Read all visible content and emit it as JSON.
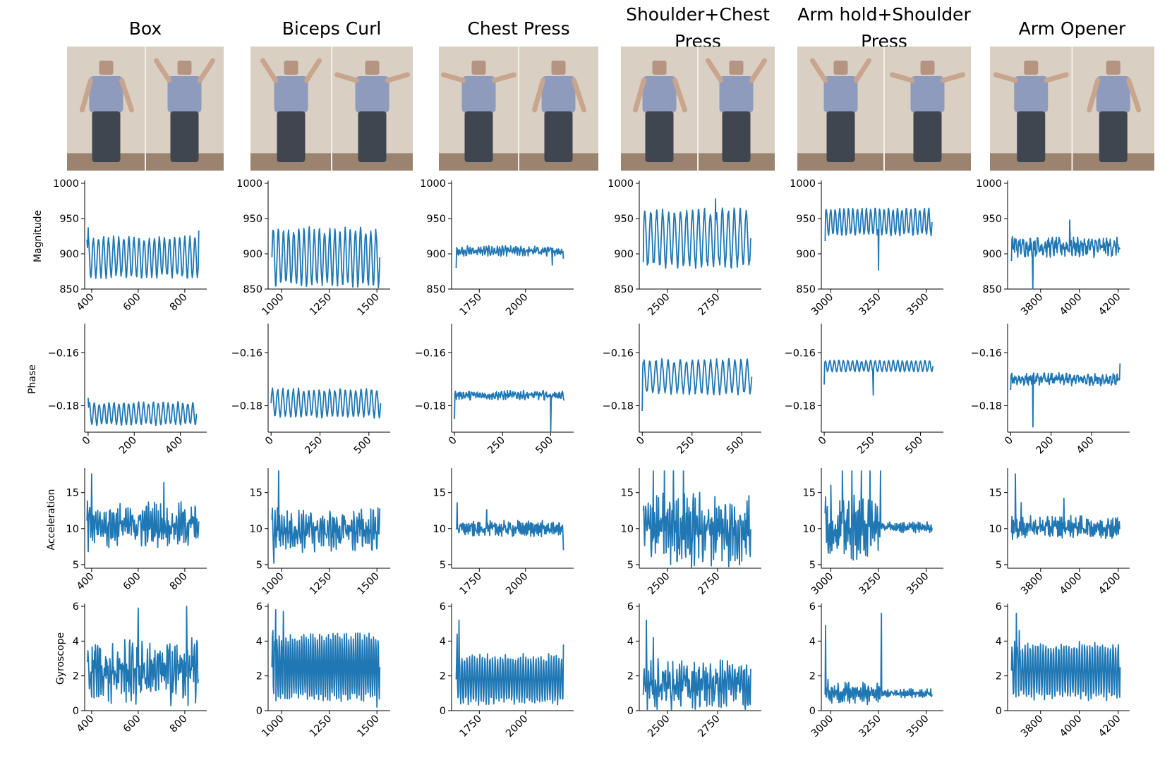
{
  "colors": {
    "line": "#1f77b4",
    "axis": "#000000"
  },
  "titles": [
    "Box",
    "Biceps Curl",
    "Chest Press",
    "Shoulder+Chest Press",
    "Arm hold+Shoulder Press",
    "Arm Opener"
  ],
  "row_ylabels": [
    "Magnitude",
    "Phase",
    "Acceleration",
    "Gyroscope"
  ],
  "photos": [
    {
      "name": "box-photo",
      "panels": 2
    },
    {
      "name": "biceps-curl-photo",
      "panels": 2
    },
    {
      "name": "chest-press-photo",
      "panels": 2
    },
    {
      "name": "shoulder-chest-press-photo",
      "panels": 2
    },
    {
      "name": "arm-hold-shoulder-press-photo",
      "panels": 2
    },
    {
      "name": "arm-opener-photo",
      "panels": 2
    }
  ],
  "chart_data": [
    {
      "type": "line",
      "row": "Magnitude",
      "col": "Box",
      "xlim": [
        370,
        870
      ],
      "xticks": [
        400,
        600,
        800
      ],
      "ylim": [
        850,
        1000
      ],
      "yticks": [
        850,
        900,
        950,
        1000
      ],
      "pattern": {
        "kind": "osc",
        "x0": 380,
        "x1": 860,
        "mean": 895,
        "amp": 27,
        "cycles": 22
      },
      "spikes": [
        [
          380,
          920
        ],
        [
          385,
          937
        ],
        [
          860,
          933
        ]
      ]
    },
    {
      "type": "line",
      "row": "Magnitude",
      "col": "Biceps Curl",
      "xlim": [
        930,
        1540
      ],
      "xticks": [
        1000,
        1250,
        1500
      ],
      "ylim": [
        850,
        1000
      ],
      "yticks": [
        850,
        900,
        950,
        1000
      ],
      "pattern": {
        "kind": "osc",
        "x0": 950,
        "x1": 1515,
        "mean": 895,
        "amp": 38,
        "cycles": 21
      },
      "spikes": []
    },
    {
      "type": "line",
      "row": "Magnitude",
      "col": "Chest Press",
      "xlim": [
        1600,
        2230
      ],
      "xticks": [
        1750,
        2000
      ],
      "ylim": [
        850,
        1000
      ],
      "yticks": [
        850,
        900,
        950,
        1000
      ],
      "pattern": {
        "kind": "noise",
        "x0": 1625,
        "x1": 2205,
        "mean": 904,
        "amp": 6,
        "cycles": 40
      },
      "spikes": [
        [
          1625,
          880
        ],
        [
          2145,
          884
        ],
        [
          2205,
          893
        ]
      ]
    },
    {
      "type": "line",
      "row": "Magnitude",
      "col": "Shoulder+Chest Press",
      "xlim": [
        2360,
        2940
      ],
      "xticks": [
        2500,
        2750
      ],
      "ylim": [
        850,
        1000
      ],
      "yticks": [
        850,
        900,
        950,
        1000
      ],
      "pattern": {
        "kind": "osc",
        "x0": 2380,
        "x1": 2915,
        "mean": 922,
        "amp": 38,
        "cycles": 18
      },
      "spikes": [
        [
          2380,
          888
        ],
        [
          2740,
          978
        ]
      ]
    },
    {
      "type": "line",
      "row": "Magnitude",
      "col": "Arm hold+Shoulder Press",
      "xlim": [
        2950,
        3560
      ],
      "xticks": [
        3000,
        3250,
        3500
      ],
      "ylim": [
        850,
        1000
      ],
      "yticks": [
        850,
        900,
        950,
        1000
      ],
      "pattern": {
        "kind": "osc",
        "x0": 2970,
        "x1": 3530,
        "mean": 945,
        "amp": 18,
        "cycles": 24
      },
      "spikes": [
        [
          2970,
          918
        ],
        [
          3250,
          877
        ]
      ]
    },
    {
      "type": "line",
      "row": "Magnitude",
      "col": "Arm Opener",
      "xlim": [
        3630,
        4230
      ],
      "xticks": [
        3800,
        4000,
        4200
      ],
      "ylim": [
        850,
        1000
      ],
      "yticks": [
        850,
        900,
        950,
        1000
      ],
      "pattern": {
        "kind": "noise",
        "x0": 3650,
        "x1": 4210,
        "mean": 910,
        "amp": 12,
        "cycles": 30
      },
      "spikes": [
        [
          3650,
          890
        ],
        [
          3665,
          922
        ],
        [
          3760,
          850
        ],
        [
          3950,
          948
        ]
      ]
    },
    {
      "type": "line",
      "row": "Phase",
      "col": "Box",
      "xlim": [
        -15,
        490
      ],
      "xticks": [
        0,
        200,
        400
      ],
      "ylim": [
        -0.19,
        -0.15
      ],
      "yticks": [
        -0.16,
        -0.18
      ],
      "pattern": {
        "kind": "osc",
        "x0": 0,
        "x1": 470,
        "mean": -0.183,
        "amp": 0.004,
        "cycles": 22
      },
      "spikes": [
        [
          0,
          -0.177
        ]
      ]
    },
    {
      "type": "line",
      "row": "Phase",
      "col": "Biceps Curl",
      "xlim": [
        -15,
        580
      ],
      "xticks": [
        0,
        250,
        500
      ],
      "ylim": [
        -0.19,
        -0.15
      ],
      "yticks": [
        -0.16,
        -0.18
      ],
      "pattern": {
        "kind": "osc",
        "x0": 0,
        "x1": 560,
        "mean": -0.179,
        "amp": 0.005,
        "cycles": 21
      },
      "spikes": []
    },
    {
      "type": "line",
      "row": "Phase",
      "col": "Chest Press",
      "xlim": [
        -15,
        590
      ],
      "xticks": [
        0,
        250,
        500
      ],
      "ylim": [
        -0.19,
        -0.15
      ],
      "yticks": [
        -0.16,
        -0.18
      ],
      "pattern": {
        "kind": "noise",
        "x0": 0,
        "x1": 570,
        "mean": -0.176,
        "amp": 0.0015,
        "cycles": 40
      },
      "spikes": [
        [
          0,
          -0.185
        ],
        [
          500,
          -0.191
        ],
        [
          570,
          -0.178
        ]
      ]
    },
    {
      "type": "line",
      "row": "Phase",
      "col": "Shoulder+Chest Press",
      "xlim": [
        -15,
        570
      ],
      "xticks": [
        0,
        250,
        500
      ],
      "ylim": [
        -0.19,
        -0.15
      ],
      "yticks": [
        -0.16,
        -0.18
      ],
      "pattern": {
        "kind": "osc",
        "x0": 0,
        "x1": 550,
        "mean": -0.169,
        "amp": 0.006,
        "cycles": 18
      },
      "spikes": [
        [
          0,
          -0.182
        ]
      ]
    },
    {
      "type": "line",
      "row": "Phase",
      "col": "Arm hold+Shoulder Press",
      "xlim": [
        -15,
        590
      ],
      "xticks": [
        0,
        250,
        500
      ],
      "ylim": [
        -0.19,
        -0.15
      ],
      "yticks": [
        -0.16,
        -0.18
      ],
      "pattern": {
        "kind": "osc",
        "x0": 0,
        "x1": 565,
        "mean": -0.165,
        "amp": 0.002,
        "cycles": 24
      },
      "spikes": [
        [
          0,
          -0.172
        ],
        [
          255,
          -0.176
        ]
      ]
    },
    {
      "type": "line",
      "row": "Phase",
      "col": "Arm Opener",
      "xlim": [
        -15,
        560
      ],
      "xticks": [
        0,
        200,
        400
      ],
      "ylim": [
        -0.19,
        -0.15
      ],
      "yticks": [
        -0.16,
        -0.18
      ],
      "pattern": {
        "kind": "noise",
        "x0": 0,
        "x1": 540,
        "mean": -0.17,
        "amp": 0.002,
        "cycles": 30
      },
      "spikes": [
        [
          0,
          -0.174
        ],
        [
          110,
          -0.188
        ],
        [
          540,
          -0.164
        ]
      ]
    },
    {
      "type": "line",
      "row": "Acceleration",
      "col": "Box",
      "xlim": [
        370,
        870
      ],
      "xticks": [
        400,
        600,
        800
      ],
      "ylim": [
        4.5,
        18
      ],
      "yticks": [
        5,
        10,
        15
      ],
      "pattern": {
        "kind": "noise",
        "x0": 380,
        "x1": 860,
        "mean": 10.5,
        "amp": 2.6,
        "cycles": 55
      },
      "spikes": [
        [
          385,
          6.8
        ],
        [
          400,
          17.6
        ],
        [
          710,
          16.4
        ],
        [
          860,
          11
        ]
      ]
    },
    {
      "type": "line",
      "row": "Acceleration",
      "col": "Biceps Curl",
      "xlim": [
        930,
        1540
      ],
      "xticks": [
        1000,
        1250,
        1500
      ],
      "ylim": [
        4.5,
        18
      ],
      "yticks": [
        5,
        10,
        15
      ],
      "pattern": {
        "kind": "noise",
        "x0": 950,
        "x1": 1515,
        "mean": 9.8,
        "amp": 2.5,
        "cycles": 45
      },
      "spikes": [
        [
          960,
          5.2
        ],
        [
          985,
          18
        ],
        [
          1515,
          12.8
        ]
      ]
    },
    {
      "type": "line",
      "row": "Acceleration",
      "col": "Chest Press",
      "xlim": [
        1600,
        2230
      ],
      "xticks": [
        1750,
        2000
      ],
      "ylim": [
        4.5,
        18
      ],
      "yticks": [
        5,
        10,
        15
      ],
      "pattern": {
        "kind": "noise",
        "x0": 1625,
        "x1": 2205,
        "mean": 10,
        "amp": 0.9,
        "cycles": 70
      },
      "spikes": [
        [
          1630,
          13.6
        ],
        [
          1790,
          12.6
        ],
        [
          2205,
          7
        ]
      ]
    },
    {
      "type": "line",
      "row": "Acceleration",
      "col": "Shoulder+Chest Press",
      "xlim": [
        2360,
        2940
      ],
      "xticks": [
        2500,
        2750
      ],
      "ylim": [
        4.5,
        18
      ],
      "yticks": [
        5,
        10,
        15
      ],
      "pattern": {
        "kind": "noise",
        "x0": 2380,
        "x1": 2915,
        "mean": 10,
        "amp": 4.2,
        "cycles": 50
      },
      "spikes": [
        [
          2430,
          18
        ],
        [
          2485,
          18
        ],
        [
          2530,
          18
        ],
        [
          2580,
          18
        ],
        [
          2620,
          4.5
        ]
      ]
    },
    {
      "type": "line",
      "row": "Acceleration",
      "col": "Arm hold+Shoulder Press",
      "xlim": [
        2950,
        3560
      ],
      "xticks": [
        3000,
        3250,
        3500
      ],
      "ylim": [
        4.5,
        18
      ],
      "yticks": [
        5,
        10,
        15
      ],
      "pattern": {
        "kind": "split",
        "x0": 2970,
        "x1": 3530,
        "split": 3265,
        "mean": 10.2,
        "amp": 3.6,
        "amp2": 0.6,
        "cycles": 60
      },
      "spikes": [
        [
          3000,
          16
        ],
        [
          3060,
          18
        ],
        [
          3110,
          18
        ],
        [
          3160,
          18
        ],
        [
          3205,
          18
        ],
        [
          3260,
          18
        ]
      ]
    },
    {
      "type": "line",
      "row": "Acceleration",
      "col": "Arm Opener",
      "xlim": [
        3630,
        4230
      ],
      "xticks": [
        3800,
        4000,
        4200
      ],
      "ylim": [
        4.5,
        18
      ],
      "yticks": [
        5,
        10,
        15
      ],
      "pattern": {
        "kind": "noise",
        "x0": 3650,
        "x1": 4210,
        "mean": 10.2,
        "amp": 1.3,
        "cycles": 70
      },
      "spikes": [
        [
          3655,
          8.5
        ],
        [
          3670,
          17.6
        ],
        [
          3700,
          13.6
        ],
        [
          3920,
          14.2
        ],
        [
          4210,
          10
        ]
      ]
    },
    {
      "type": "line",
      "row": "Gyroscope",
      "col": "Box",
      "xlim": [
        370,
        870
      ],
      "xticks": [
        400,
        600,
        800
      ],
      "ylim": [
        0,
        6
      ],
      "yticks": [
        0,
        2,
        4,
        6
      ],
      "pattern": {
        "kind": "noise",
        "x0": 380,
        "x1": 860,
        "mean": 2.3,
        "amp": 1.6,
        "cycles": 45
      },
      "spikes": [
        [
          600,
          5.9
        ],
        [
          808,
          6.0
        ],
        [
          860,
          1.8
        ]
      ]
    },
    {
      "type": "line",
      "row": "Gyroscope",
      "col": "Biceps Curl",
      "xlim": [
        930,
        1540
      ],
      "xticks": [
        1000,
        1250,
        1500
      ],
      "ylim": [
        0,
        6
      ],
      "yticks": [
        0,
        2,
        4,
        6
      ],
      "pattern": {
        "kind": "osc",
        "x0": 950,
        "x1": 1515,
        "mean": 2.5,
        "amp": 1.8,
        "cycles": 48
      },
      "spikes": [
        [
          955,
          4.6
        ],
        [
          970,
          5.8
        ],
        [
          1010,
          5.7
        ],
        [
          1500,
          0.2
        ]
      ]
    },
    {
      "type": "line",
      "row": "Gyroscope",
      "col": "Chest Press",
      "xlim": [
        1600,
        2230
      ],
      "xticks": [
        1750,
        2000
      ],
      "ylim": [
        0,
        6
      ],
      "yticks": [
        0,
        2,
        4,
        6
      ],
      "pattern": {
        "kind": "osc",
        "x0": 1625,
        "x1": 2205,
        "mean": 1.8,
        "amp": 1.3,
        "cycles": 42
      },
      "spikes": [
        [
          1630,
          4.4
        ],
        [
          1640,
          5.2
        ],
        [
          2205,
          3.8
        ]
      ]
    },
    {
      "type": "line",
      "row": "Gyroscope",
      "col": "Shoulder+Chest Press",
      "xlim": [
        2360,
        2940
      ],
      "xticks": [
        2500,
        2750
      ],
      "ylim": [
        0,
        6
      ],
      "yticks": [
        0,
        2,
        4,
        6
      ],
      "pattern": {
        "kind": "noise",
        "x0": 2380,
        "x1": 2915,
        "mean": 1.5,
        "amp": 1.2,
        "cycles": 45
      },
      "spikes": [
        [
          2395,
          5.2
        ],
        [
          2430,
          4.2
        ],
        [
          2915,
          2.4
        ]
      ]
    },
    {
      "type": "line",
      "row": "Gyroscope",
      "col": "Arm hold+Shoulder Press",
      "xlim": [
        2950,
        3560
      ],
      "xticks": [
        3000,
        3250,
        3500
      ],
      "ylim": [
        0,
        6
      ],
      "yticks": [
        0,
        2,
        4,
        6
      ],
      "pattern": {
        "kind": "split",
        "x0": 2970,
        "x1": 3530,
        "split": 3270,
        "mean": 1.0,
        "amp": 0.5,
        "amp2": 0.2,
        "cycles": 60
      },
      "spikes": [
        [
          2972,
          4.9
        ],
        [
          2985,
          1.8
        ],
        [
          3265,
          5.6
        ]
      ]
    },
    {
      "type": "line",
      "row": "Gyroscope",
      "col": "Arm Opener",
      "xlim": [
        3630,
        4230
      ],
      "xticks": [
        3800,
        4000,
        4200
      ],
      "ylim": [
        0,
        6
      ],
      "yticks": [
        0,
        2,
        4,
        6
      ],
      "pattern": {
        "kind": "osc",
        "x0": 3650,
        "x1": 4210,
        "mean": 2.3,
        "amp": 1.5,
        "cycles": 42
      },
      "spikes": [
        [
          3655,
          3.3
        ],
        [
          3675,
          5.6
        ],
        [
          3690,
          4.6
        ],
        [
          4210,
          2.5
        ]
      ]
    }
  ]
}
